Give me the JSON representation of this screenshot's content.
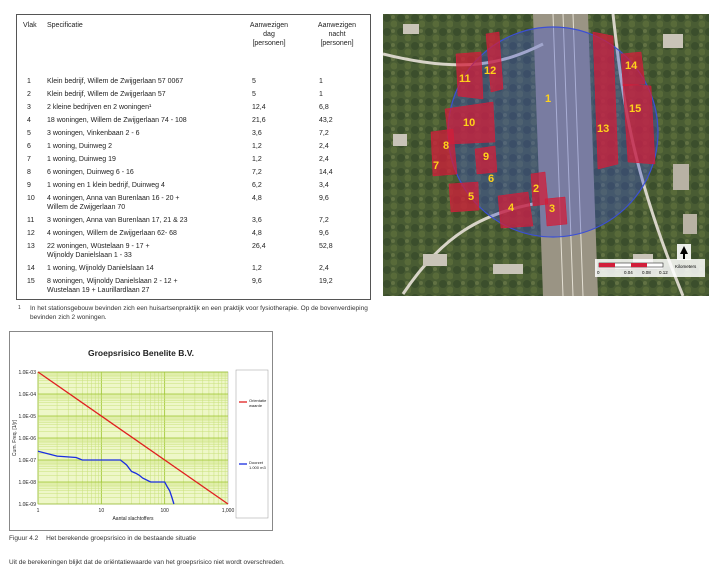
{
  "table": {
    "headers": {
      "vlak": "Vlak",
      "specificatie": "Specificatie",
      "dag": [
        "Aanwezigen",
        "dag",
        "[personen]"
      ],
      "nacht": [
        "Aanwezigen",
        "nacht",
        "[personen]"
      ]
    },
    "rows": [
      {
        "vlak": "1",
        "spec": [
          "Klein bedrijf, Willem de Zwijgerlaan  57 0067"
        ],
        "dag": "5",
        "nacht": "1"
      },
      {
        "vlak": "2",
        "spec": [
          "Klein bedrijf, Willem de Zwijgerlaan  57"
        ],
        "dag": "5",
        "nacht": "1"
      },
      {
        "vlak": "3",
        "spec": [
          "2 kleine bedrijven en 2 woningen¹"
        ],
        "dag": "12,4",
        "nacht": "6,8"
      },
      {
        "vlak": "4",
        "spec": [
          "18 woningen, Willem de Zwijgerlaan 74 - 108"
        ],
        "dag": "21,6",
        "nacht": "43,2"
      },
      {
        "vlak": "5",
        "spec": [
          "3 woningen, Vinkenbaan 2 - 6"
        ],
        "dag": "3,6",
        "nacht": "7,2"
      },
      {
        "vlak": "6",
        "spec": [
          "1 woning, Duinweg 2"
        ],
        "dag": "1,2",
        "nacht": "2,4"
      },
      {
        "vlak": "7",
        "spec": [
          "1 woning, Duinweg 19"
        ],
        "dag": "1,2",
        "nacht": "2,4"
      },
      {
        "vlak": "8",
        "spec": [
          "6 woningen, Duinweg 6 - 16"
        ],
        "dag": "7,2",
        "nacht": "14,4"
      },
      {
        "vlak": "9",
        "spec": [
          "1 woning en 1 klein bedrijf, Duinweg 4"
        ],
        "dag": "6,2",
        "nacht": "3,4"
      },
      {
        "vlak": "10",
        "spec": [
          "4 woningen, Anna van Burenlaan 16 - 20 +",
          "Willem de Zwijgerlaan 70"
        ],
        "dag": "4,8",
        "nacht": "9,6"
      },
      {
        "vlak": "11",
        "spec": [
          "3 woningen, Anna van Burenlaan 17, 21 & 23"
        ],
        "dag": "3,6",
        "nacht": "7,2"
      },
      {
        "vlak": "12",
        "spec": [
          "4 woningen, Willem de Zwijgerlaan 62- 68"
        ],
        "dag": "4,8",
        "nacht": "9,6"
      },
      {
        "vlak": "13",
        "spec": [
          "22 woningen, Wüstelaan 9 - 17 +",
          "Wijnoldy Danielslaan 1 - 33"
        ],
        "dag": "26,4",
        "nacht": "52,8"
      },
      {
        "vlak": "14",
        "spec": [
          "1 woning, Wijnoldy Danielslaan 14"
        ],
        "dag": "1,2",
        "nacht": "2,4"
      },
      {
        "vlak": "15",
        "spec": [
          "8 woningen, Wijnoldy Danielslaan 2 - 12 +",
          "Wustelaan 19 + Laurillardlaan 27"
        ],
        "dag": "9,6",
        "nacht": "19,2"
      }
    ]
  },
  "footnote": {
    "number": "1",
    "text": "In het stationsgebouw bevinden zich een huisartsenpraktijk en een praktijk voor fysiotherapie. Op de bovenverdieping bevinden zich 2 woningen."
  },
  "map": {
    "area_labels": [
      "1",
      "2",
      "3",
      "4",
      "5",
      "6",
      "7",
      "8",
      "9",
      "10",
      "11",
      "12",
      "13",
      "14",
      "15"
    ],
    "scale_ticks": [
      "0",
      "0.04",
      "0.08",
      "0.12"
    ],
    "scale_unit": "Kilometers",
    "north_icon": "north-arrow-icon",
    "colors": {
      "circle_fill": "#3b4fd6",
      "area_fill": "#d21d3a",
      "label": "#ffd21a"
    }
  },
  "chart_data": {
    "type": "line",
    "title": "Groepsrisico Benelite B.V.",
    "xlabel": "Aantal slachtoffers",
    "ylabel": "Cum. Freq. [1/jr]",
    "x_scale": "log",
    "y_scale": "log",
    "xlim": [
      1,
      1000
    ],
    "ylim": [
      1e-09,
      0.001
    ],
    "x_ticks": [
      "1",
      "10",
      "100",
      "1,000"
    ],
    "y_ticks": [
      "1.0E-03",
      "1.0E-04",
      "1.0E-05",
      "1.0E-06",
      "1.0E-07",
      "1.0E-08",
      "1.0E-09"
    ],
    "grid": true,
    "legend": "right",
    "series": [
      {
        "name": "Orientatie waarde",
        "color": "#e02020",
        "x": [
          1,
          1000
        ],
        "y": [
          0.001,
          1e-09
        ]
      },
      {
        "name": "Doorzet 1.000 m3",
        "color": "#1a2ee0",
        "x": [
          1,
          2,
          4,
          5,
          20,
          25,
          30,
          35,
          40,
          45,
          60,
          70,
          100,
          110,
          120,
          130,
          140
        ],
        "y": [
          2.5e-07,
          1.5e-07,
          1.3e-07,
          1e-07,
          1e-07,
          6e-08,
          3e-08,
          2.5e-08,
          2e-08,
          1.5e-08,
          1e-08,
          1e-08,
          1e-08,
          6e-09,
          4e-09,
          2e-09,
          1e-09
        ]
      }
    ]
  },
  "caption": {
    "figure": "Figuur 4.2",
    "text": "Het berekende groepsrisico in de bestaande situatie"
  },
  "conclusion": "Uit de berekeningen blijkt dat de oriëntatiewaarde van het groepsrisico niet wordt overschreden."
}
